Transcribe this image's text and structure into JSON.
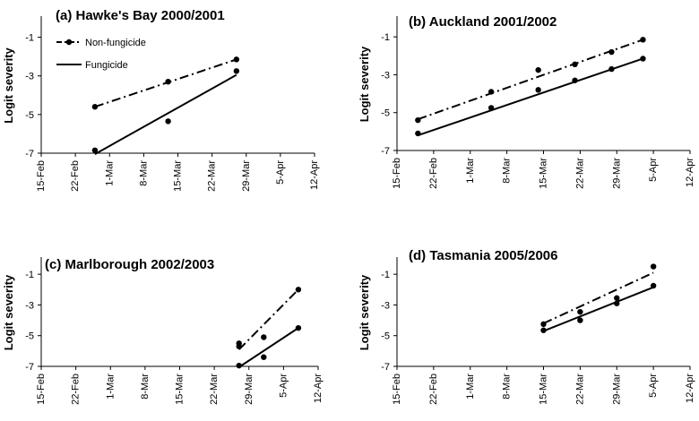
{
  "chart_data": [
    {
      "type": "line",
      "title": "(a) Hawke's Bay 2000/2001",
      "ylabel": "Logit severity",
      "xlabel": "",
      "x_ticks": [
        "15-Feb",
        "22-Feb",
        "1-Mar",
        "8-Mar",
        "15-Mar",
        "22-Mar",
        "29-Mar",
        "5-Apr",
        "12-Apr"
      ],
      "y_ticks": [
        "-1",
        "-3",
        "-5",
        "-7"
      ],
      "ylim": [
        -7,
        0
      ],
      "legend": {
        "position": "top-left",
        "entries": [
          "Non-fungicide",
          "Fungicide"
        ]
      },
      "series": [
        {
          "name": "Non-fungicide",
          "style": "dash-dot",
          "points": [
            [
              "2001-02-26",
              -4.6
            ],
            [
              "2001-03-13",
              -3.3
            ],
            [
              "2001-03-27",
              -2.15
            ]
          ],
          "fit": [
            [
              "2001-02-26",
              -4.6
            ],
            [
              "2001-03-27",
              -2.15
            ]
          ]
        },
        {
          "name": "Fungicide",
          "style": "solid",
          "points": [
            [
              "2001-02-26",
              -6.85
            ],
            [
              "2001-03-13",
              -5.35
            ],
            [
              "2001-03-27",
              -2.75
            ]
          ],
          "fit": [
            [
              "2001-02-26",
              -7.05
            ],
            [
              "2001-03-27",
              -2.95
            ]
          ]
        }
      ]
    },
    {
      "type": "line",
      "title": "(b) Auckland 2001/2002",
      "ylabel": "Logit severity",
      "xlabel": "",
      "x_ticks": [
        "15-Feb",
        "22-Feb",
        "1-Mar",
        "8-Mar",
        "15-Mar",
        "22-Mar",
        "29-Mar",
        "5-Apr",
        "12-Apr"
      ],
      "y_ticks": [
        "-1",
        "-3",
        "-5",
        "-7"
      ],
      "ylim": [
        -7,
        0
      ],
      "series": [
        {
          "style": "dash-dot",
          "points": [
            [
              "2002-02-19",
              -5.4
            ],
            [
              "2002-03-05",
              -3.9
            ],
            [
              "2002-03-14",
              -2.75
            ],
            [
              "2002-03-21",
              -2.45
            ],
            [
              "2002-03-28",
              -1.8
            ],
            [
              "2002-04-03",
              -1.15
            ]
          ],
          "fit": [
            [
              "2002-02-19",
              -5.35
            ],
            [
              "2002-04-03",
              -1.15
            ]
          ]
        },
        {
          "style": "solid",
          "points": [
            [
              "2002-02-19",
              -6.1
            ],
            [
              "2002-03-05",
              -4.75
            ],
            [
              "2002-03-14",
              -3.8
            ],
            [
              "2002-03-21",
              -3.3
            ],
            [
              "2002-03-28",
              -2.7
            ],
            [
              "2002-04-03",
              -2.15
            ]
          ],
          "fit": [
            [
              "2002-02-19",
              -6.2
            ],
            [
              "2002-04-03",
              -2.15
            ]
          ]
        }
      ]
    },
    {
      "type": "line",
      "title": "(c) Marlborough 2002/2003",
      "ylabel": "Logit severity",
      "xlabel": "",
      "x_ticks": [
        "15-Feb",
        "22-Feb",
        "1-Mar",
        "8-Mar",
        "15-Mar",
        "22-Mar",
        "29-Mar",
        "5-Apr",
        "12-Apr"
      ],
      "y_ticks": [
        "-1",
        "-3",
        "-5",
        "-7"
      ],
      "ylim": [
        -7,
        0
      ],
      "series": [
        {
          "style": "dash-dot",
          "points": [
            [
              "2003-03-27",
              -5.5
            ],
            [
              "2003-03-27",
              -5.7
            ],
            [
              "2003-04-01",
              -5.1
            ],
            [
              "2003-04-08",
              -2.0
            ]
          ],
          "fit": [
            [
              "2003-03-27",
              -5.9
            ],
            [
              "2003-04-08",
              -2.0
            ]
          ]
        },
        {
          "style": "solid",
          "points": [
            [
              "2003-03-27",
              -6.95
            ],
            [
              "2003-04-01",
              -6.4
            ],
            [
              "2003-04-08",
              -4.5
            ]
          ],
          "fit": [
            [
              "2003-03-27",
              -7.05
            ],
            [
              "2003-04-08",
              -4.5
            ]
          ]
        }
      ]
    },
    {
      "type": "line",
      "title": "(d) Tasmania 2005/2006",
      "ylabel": "Logit severity",
      "xlabel": "",
      "x_ticks": [
        "15-Feb",
        "22-Feb",
        "1-Mar",
        "8-Mar",
        "15-Mar",
        "22-Mar",
        "29-Mar",
        "5-Apr",
        "12-Apr"
      ],
      "y_ticks": [
        "-1",
        "-3",
        "-5",
        "-7"
      ],
      "ylim": [
        -7,
        0
      ],
      "series": [
        {
          "style": "dash-dot",
          "points": [
            [
              "2006-03-15",
              -4.25
            ],
            [
              "2006-03-22",
              -3.45
            ],
            [
              "2006-03-29",
              -2.55
            ],
            [
              "2006-04-05",
              -0.5
            ]
          ],
          "fit": [
            [
              "2006-03-15",
              -4.2
            ],
            [
              "2006-04-05",
              -0.9
            ]
          ]
        },
        {
          "style": "solid",
          "points": [
            [
              "2006-03-15",
              -4.65
            ],
            [
              "2006-03-22",
              -4.0
            ],
            [
              "2006-03-29",
              -2.9
            ],
            [
              "2006-04-05",
              -1.75
            ]
          ],
          "fit": [
            [
              "2006-03-15",
              -4.7
            ],
            [
              "2006-04-05",
              -1.85
            ]
          ]
        }
      ]
    }
  ]
}
